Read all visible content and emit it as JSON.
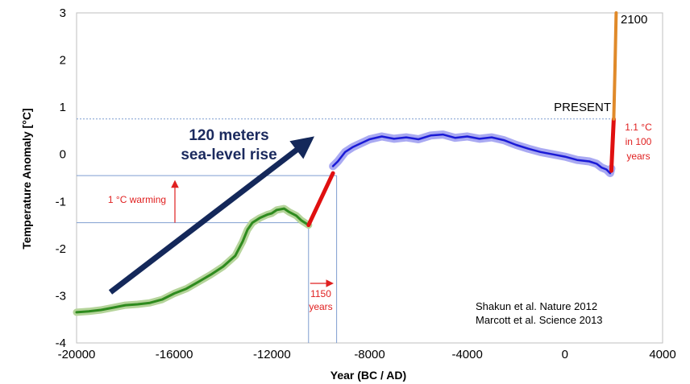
{
  "chart_data": {
    "type": "line",
    "xlabel": "Year (BC / AD)",
    "ylabel": "Temperature Anomaly [°C]",
    "xlim": [
      -20000,
      4000
    ],
    "ylim": [
      -4,
      3
    ],
    "xticks": [
      -20000,
      -16000,
      -12000,
      -8000,
      -4000,
      0,
      4000
    ],
    "yticks": [
      -4,
      -3,
      -2,
      -1,
      0,
      1,
      2,
      3
    ],
    "grid": false,
    "colors": {
      "shakun_line": "#2e8b1e",
      "shakun_band": "#b5d49a",
      "marcott_line": "#1a1ad6",
      "marcott_band": "#a9a9f2",
      "warming_segment": "#e01010",
      "projection": "#e08a2a",
      "arrow": "#14285a",
      "reference_lines": "#7f9ed0",
      "annotation_red": "#e02020"
    },
    "series": [
      {
        "x": [
          -20000,
          -19500,
          -19000,
          -18500,
          -18000,
          -17500,
          -17000,
          -16500,
          -16000,
          -15500,
          -15000,
          -14500,
          -14000,
          -13500,
          -13200,
          -13000,
          -12800,
          -12500,
          -12200,
          -12000,
          -11800,
          -11500,
          -11300,
          -11000,
          -10800,
          -10500
        ],
        "values": [
          -3.35,
          -3.33,
          -3.3,
          -3.25,
          -3.2,
          -3.18,
          -3.15,
          -3.08,
          -2.95,
          -2.85,
          -2.7,
          -2.55,
          -2.38,
          -2.15,
          -1.85,
          -1.6,
          -1.45,
          -1.35,
          -1.28,
          -1.25,
          -1.18,
          -1.15,
          -1.22,
          -1.3,
          -1.4,
          -1.5
        ]
      },
      {
        "x": [
          -10500,
          -9500
        ],
        "values": [
          -1.5,
          -0.4
        ]
      },
      {
        "x": [
          -9500,
          -9300,
          -9000,
          -8700,
          -8500,
          -8000,
          -7500,
          -7000,
          -6500,
          -6000,
          -5500,
          -5000,
          -4500,
          -4000,
          -3500,
          -3000,
          -2500,
          -2000,
          -1500,
          -1000,
          -500,
          0,
          500,
          1000,
          1300,
          1500,
          1700,
          1850,
          1900
        ],
        "values": [
          -0.25,
          -0.15,
          0.05,
          0.15,
          0.2,
          0.32,
          0.38,
          0.33,
          0.36,
          0.32,
          0.4,
          0.42,
          0.35,
          0.38,
          0.33,
          0.36,
          0.3,
          0.2,
          0.12,
          0.05,
          0.0,
          -0.05,
          -0.12,
          -0.15,
          -0.2,
          -0.28,
          -0.32,
          -0.4,
          -0.3
        ]
      },
      {
        "x": [
          1900,
          2000
        ],
        "values": [
          -0.35,
          0.75
        ]
      },
      {
        "x": [
          2000,
          2050,
          2100
        ],
        "values": [
          0.75,
          1.8,
          3.0
        ]
      }
    ],
    "annotations": {
      "sea_level_line1": "120 meters",
      "sea_level_line2": "sea-level rise",
      "warming_1c": "1 °C warming",
      "years_1150_a": "1150",
      "years_1150_b": "years",
      "present": "PRESENT",
      "year_2100": "2100",
      "warming_recent_1": "1.1 °C",
      "warming_recent_2": "in 100",
      "warming_recent_3": "years",
      "source_1": "Shakun et al. Nature 2012",
      "source_2": "Marcott et al. Science 2013"
    },
    "reference": {
      "present_level": 0.75,
      "warming_low": -1.45,
      "warming_high": -0.45,
      "period_start": -10500,
      "period_end": -9350
    }
  }
}
